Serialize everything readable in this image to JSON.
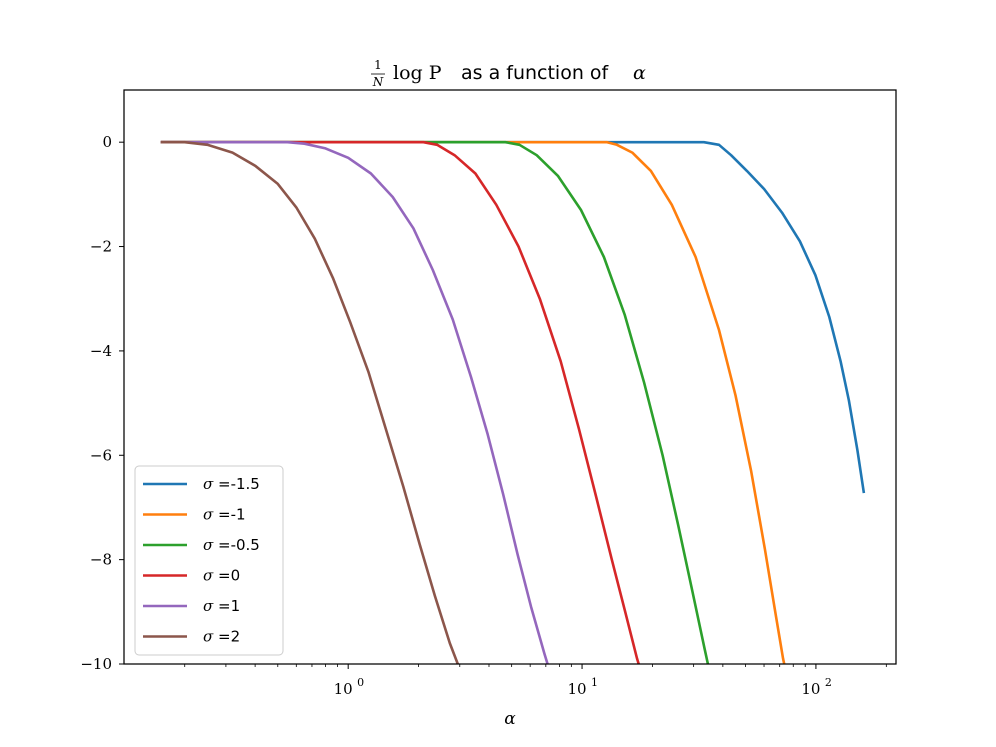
{
  "chart_data": {
    "type": "line",
    "title": {
      "prefix_fraction": {
        "numerator": "1",
        "denominator": "N"
      },
      "math": "log P",
      "text": "as a function of",
      "variable": "α"
    },
    "xlabel": "α",
    "ylabel": "",
    "x_scale": "log",
    "xlim": [
      0.11,
      220
    ],
    "ylim": [
      -10,
      1
    ],
    "yticks": [
      0,
      -2,
      -4,
      -6,
      -8,
      -10
    ],
    "ytick_labels": [
      "0",
      "−2",
      "−4",
      "−6",
      "−8",
      "−10"
    ],
    "xticks": [
      1,
      10,
      100
    ],
    "xtick_labels": [
      {
        "base": "10",
        "exp": "0"
      },
      {
        "base": "10",
        "exp": "1"
      },
      {
        "base": "10",
        "exp": "2"
      }
    ],
    "grid": false,
    "legend_position": "lower-left",
    "series": [
      {
        "name": "σ =-1.5",
        "color": "#1f77b4",
        "x": [
          0.16,
          1,
          5,
          20,
          33.2,
          38.5,
          43.4,
          50.7,
          60.1,
          71.6,
          85.4,
          99.5,
          114.1,
          127.5,
          138.4,
          150.5,
          160.1
        ],
        "y": [
          0,
          0,
          0,
          0,
          0,
          -0.05,
          -0.25,
          -0.55,
          -0.9,
          -1.35,
          -1.9,
          -2.55,
          -3.35,
          -4.2,
          -4.95,
          -5.9,
          -6.7
        ]
      },
      {
        "name": "σ =-1",
        "color": "#ff7f0e",
        "x": [
          0.16,
          1,
          5,
          10,
          12.8,
          14.1,
          16.4,
          19.7,
          24.2,
          30.6,
          38.5,
          45.3,
          52.8,
          60.5,
          67.6,
          72.4,
          77.4,
          84.5
        ],
        "y": [
          0,
          0,
          0,
          0,
          0,
          -0.05,
          -0.2,
          -0.55,
          -1.2,
          -2.2,
          -3.6,
          -4.85,
          -6.3,
          -7.8,
          -9.1,
          -9.9,
          -10.5,
          -11.3
        ]
      },
      {
        "name": "σ =-0.5",
        "color": "#2ca02c",
        "x": [
          0.16,
          1,
          4.7,
          5.4,
          6.4,
          7.9,
          9.9,
          12.4,
          15.2,
          18.4,
          22.1,
          25.8,
          29.6,
          33.4,
          36.9,
          38.5
        ],
        "y": [
          0,
          0,
          0,
          -0.05,
          -0.25,
          -0.65,
          -1.3,
          -2.2,
          -3.3,
          -4.6,
          -6.0,
          -7.35,
          -8.6,
          -9.7,
          -10.6,
          -11.1
        ]
      },
      {
        "name": "σ =0",
        "color": "#d62728",
        "x": [
          0.16,
          1,
          2.1,
          2.4,
          2.85,
          3.5,
          4.3,
          5.35,
          6.6,
          8.1,
          9.7,
          11.5,
          13.4,
          15.3,
          17.2,
          19.2,
          20.6
        ],
        "y": [
          0,
          0,
          0,
          -0.05,
          -0.25,
          -0.6,
          -1.2,
          -2.0,
          -3.0,
          -4.2,
          -5.5,
          -6.8,
          -8.0,
          -9.0,
          -9.9,
          -10.6,
          -11.1
        ]
      },
      {
        "name": "σ =1",
        "color": "#9467bd",
        "x": [
          0.16,
          0.3,
          0.55,
          0.65,
          0.8,
          1.0,
          1.25,
          1.55,
          1.9,
          2.3,
          2.8,
          3.35,
          3.95,
          4.6,
          5.3,
          6.05,
          6.9,
          7.7
        ],
        "y": [
          0,
          0,
          0,
          -0.03,
          -0.12,
          -0.3,
          -0.6,
          -1.05,
          -1.65,
          -2.45,
          -3.4,
          -4.5,
          -5.6,
          -6.75,
          -7.9,
          -8.9,
          -9.8,
          -10.5
        ]
      },
      {
        "name": "σ =2",
        "color": "#8c564b",
        "x": [
          0.16,
          0.2,
          0.25,
          0.32,
          0.4,
          0.5,
          0.6,
          0.72,
          0.86,
          1.02,
          1.22,
          1.45,
          1.72,
          2.02,
          2.35,
          2.72,
          3.12,
          3.55
        ],
        "y": [
          0,
          0,
          -0.05,
          -0.2,
          -0.45,
          -0.8,
          -1.25,
          -1.85,
          -2.6,
          -3.45,
          -4.4,
          -5.5,
          -6.6,
          -7.7,
          -8.7,
          -9.6,
          -10.3,
          -10.9
        ]
      }
    ]
  }
}
